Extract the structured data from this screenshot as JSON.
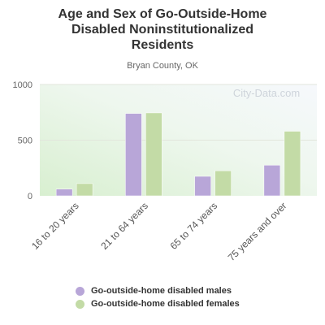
{
  "chart_data": {
    "type": "bar",
    "title": "Age and Sex of Go-Outside-Home Disabled Noninstitutionalized Residents",
    "title_lines": [
      "Age and Sex of Go-Outside-Home",
      "Disabled Noninstitutionalized",
      "Residents"
    ],
    "subtitle": "Bryan County, OK",
    "watermark": "City-Data.com",
    "categories": [
      "16 to 20 years",
      "21 to 64 years",
      "65 to 74 years",
      "75 years and over"
    ],
    "series": [
      {
        "name": "Go-outside-home disabled males",
        "values": [
          60,
          740,
          175,
          275
        ],
        "color": "#b8a6d8"
      },
      {
        "name": "Go-outside-home disabled females",
        "values": [
          110,
          745,
          225,
          580
        ],
        "color": "#c3dba6"
      }
    ],
    "ylim": [
      0,
      1000
    ],
    "yticks": [
      0,
      500,
      1000
    ],
    "grid": true,
    "legend_position": "bottom"
  }
}
